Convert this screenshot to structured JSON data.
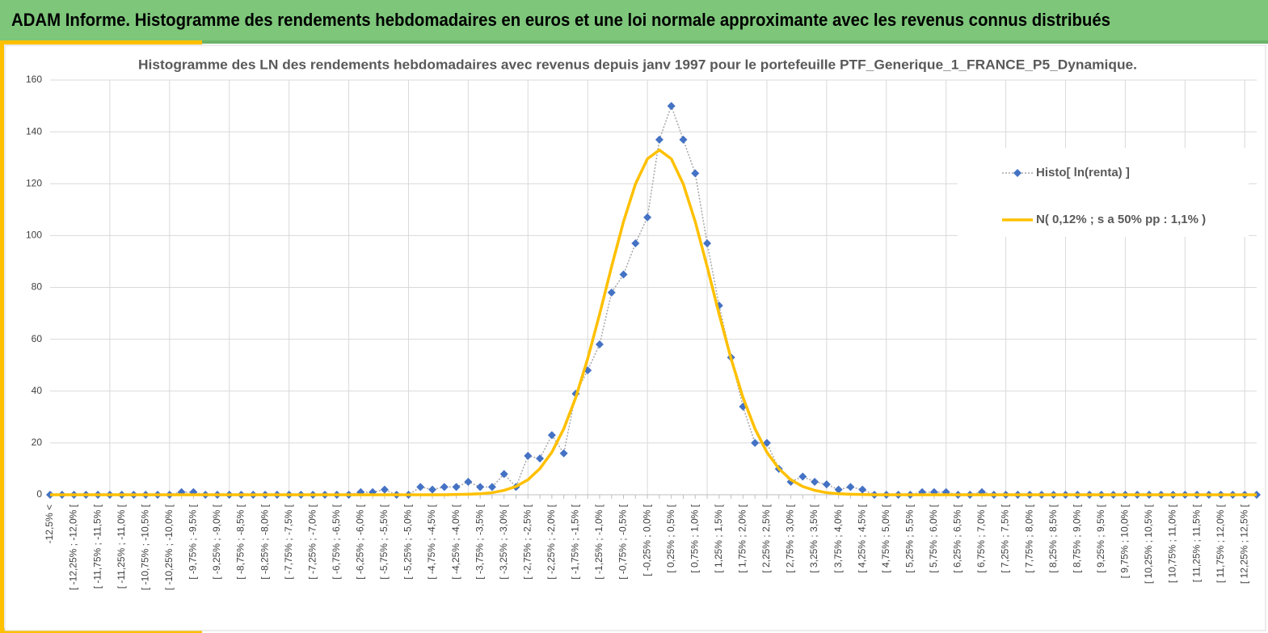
{
  "header": {
    "title": "ADAM Informe. Histogramme des rendements hebdomadaires en euros et une loi normale approximante avec les revenus connus distribués"
  },
  "chart_data": {
    "type": "line",
    "title": "Histogramme des LN des rendements hebdomadaires avec revenus depuis janv 1997 pour le portefeuille PTF_Generique_1_FRANCE_P5_Dynamique.",
    "categories": [
      "-12,5% <",
      null,
      "[ -12,25% ; -12,0% [",
      null,
      "[ -11,75% ; -11,5% [",
      null,
      "[ -11,25% ; -11,0% [",
      null,
      "[ -10,75% ; -10,5% [",
      null,
      "[ -10,25% ; -10,0% [",
      null,
      "[ -9,75% ; -9,5% [",
      null,
      "[ -9,25% ; -9,0% [",
      null,
      "[ -8,75% ; -8,5% [",
      null,
      "[ -8,25% ; -8,0% [",
      null,
      "[ -7,75% ; -7,5% [",
      null,
      "[ -7,25% ; -7,0% [",
      null,
      "[ -6,75% ; -6,5% [",
      null,
      "[ -6,25% ; -6,0% [",
      null,
      "[ -5,75% ; -5,5% [",
      null,
      "[ -5,25% ; -5,0% [",
      null,
      "[ -4,75% ; -4,5% [",
      null,
      "[ -4,25% ; -4,0% [",
      null,
      "[ -3,75% ; -3,5% [",
      null,
      "[ -3,25% ; -3,0% [",
      null,
      "[ -2,75% ; -2,5% [",
      null,
      "[ -2,25% ; -2,0% [",
      null,
      "[ -1,75% ; -1,5% [",
      null,
      "[ -1,25% ; -1,0% [",
      null,
      "[ -0,75% ; -0,5% [",
      null,
      "[ -0,25% ; 0,0% [",
      null,
      "[ 0,25% ; 0,5% [",
      null,
      "[ 0,75% ; 1,0% [",
      null,
      "[ 1,25% ; 1,5% [",
      null,
      "[ 1,75% ; 2,0% [",
      null,
      "[ 2,25% ; 2,5% [",
      null,
      "[ 2,75% ; 3,0% [",
      null,
      "[ 3,25% ; 3,5% [",
      null,
      "[ 3,75% ; 4,0% [",
      null,
      "[ 4,25% ; 4,5% [",
      null,
      "[ 4,75% ; 5,0% [",
      null,
      "[ 5,25% ; 5,5% [",
      null,
      "[ 5,75% ; 6,0% [",
      null,
      "[ 6,25% ; 6,5% [",
      null,
      "[ 6,75% ; 7,0% [",
      null,
      "[ 7,25% ; 7,5% [",
      null,
      "[ 7,75% ; 8,0% [",
      null,
      "[ 8,25% ; 8,5% [",
      null,
      "[ 8,75% ; 9,0% [",
      null,
      "[ 9,25% ; 9,5% [",
      null,
      "[ 9,75% ; 10,0% [",
      null,
      "[ 10,25% ; 10,5% [",
      null,
      "[ 10,75% ; 11,0% [",
      null,
      "[ 11,25% ; 11,5% [",
      null,
      "[ 11,75% ; 12,0% [",
      null,
      "[ 12,25% ; 12,5% [",
      null
    ],
    "series": [
      {
        "name": "Histo[ ln(renta) ]",
        "color": "#4472c4",
        "line_color": "#a6a6a6",
        "dashed": true,
        "marker": "diamond",
        "values": [
          0,
          0,
          0,
          0,
          0,
          0,
          0,
          0,
          0,
          0,
          0,
          1,
          1,
          0,
          0,
          0,
          0,
          0,
          0,
          0,
          0,
          0,
          0,
          0,
          0,
          0,
          1,
          1,
          2,
          0,
          0,
          3,
          2,
          3,
          3,
          5,
          3,
          3,
          8,
          3,
          15,
          14,
          23,
          16,
          39,
          48,
          58,
          78,
          85,
          97,
          107,
          137,
          150,
          137,
          124,
          97,
          73,
          53,
          34,
          20,
          20,
          10,
          5,
          7,
          5,
          4,
          2,
          3,
          2,
          0,
          0,
          0,
          0,
          1,
          1,
          1,
          0,
          0,
          1,
          0,
          0,
          0,
          0,
          0,
          0,
          0,
          0,
          0,
          0,
          0,
          0,
          0,
          0,
          0,
          0,
          0,
          0,
          0,
          0,
          0,
          0,
          0
        ]
      },
      {
        "name": "N( 0,12% ; s a 50% pp : 1,1% )",
        "color": "#ffc000",
        "line_color": "#ffc000",
        "dashed": false,
        "marker": null,
        "values": [
          0,
          0,
          0,
          0,
          0,
          0,
          0,
          0,
          0,
          0,
          0,
          0,
          0,
          0,
          0,
          0,
          0,
          0,
          0,
          0,
          0,
          0,
          0,
          0,
          0,
          0,
          0,
          0,
          0,
          0,
          0,
          0,
          0,
          0,
          0.1,
          0.2,
          0.4,
          0.8,
          1.7,
          3.2,
          5.8,
          10.1,
          16.4,
          25.5,
          37.5,
          52.5,
          69.7,
          88.0,
          105.4,
          119.9,
          129.6,
          133,
          129.6,
          119.9,
          105.4,
          88.0,
          69.7,
          52.5,
          37.5,
          25.5,
          16.4,
          10.1,
          5.8,
          3.2,
          1.7,
          0.8,
          0.4,
          0.2,
          0.1,
          0,
          0,
          0,
          0,
          0,
          0,
          0,
          0,
          0,
          0,
          0,
          0,
          0,
          0,
          0,
          0,
          0,
          0,
          0,
          0,
          0,
          0,
          0,
          0,
          0,
          0,
          0,
          0,
          0,
          0,
          0,
          0,
          0
        ]
      }
    ],
    "ylim": [
      0,
      160
    ],
    "yticks": [
      0,
      20,
      40,
      60,
      80,
      100,
      120,
      140,
      160
    ],
    "grid": true,
    "legend": "right"
  }
}
